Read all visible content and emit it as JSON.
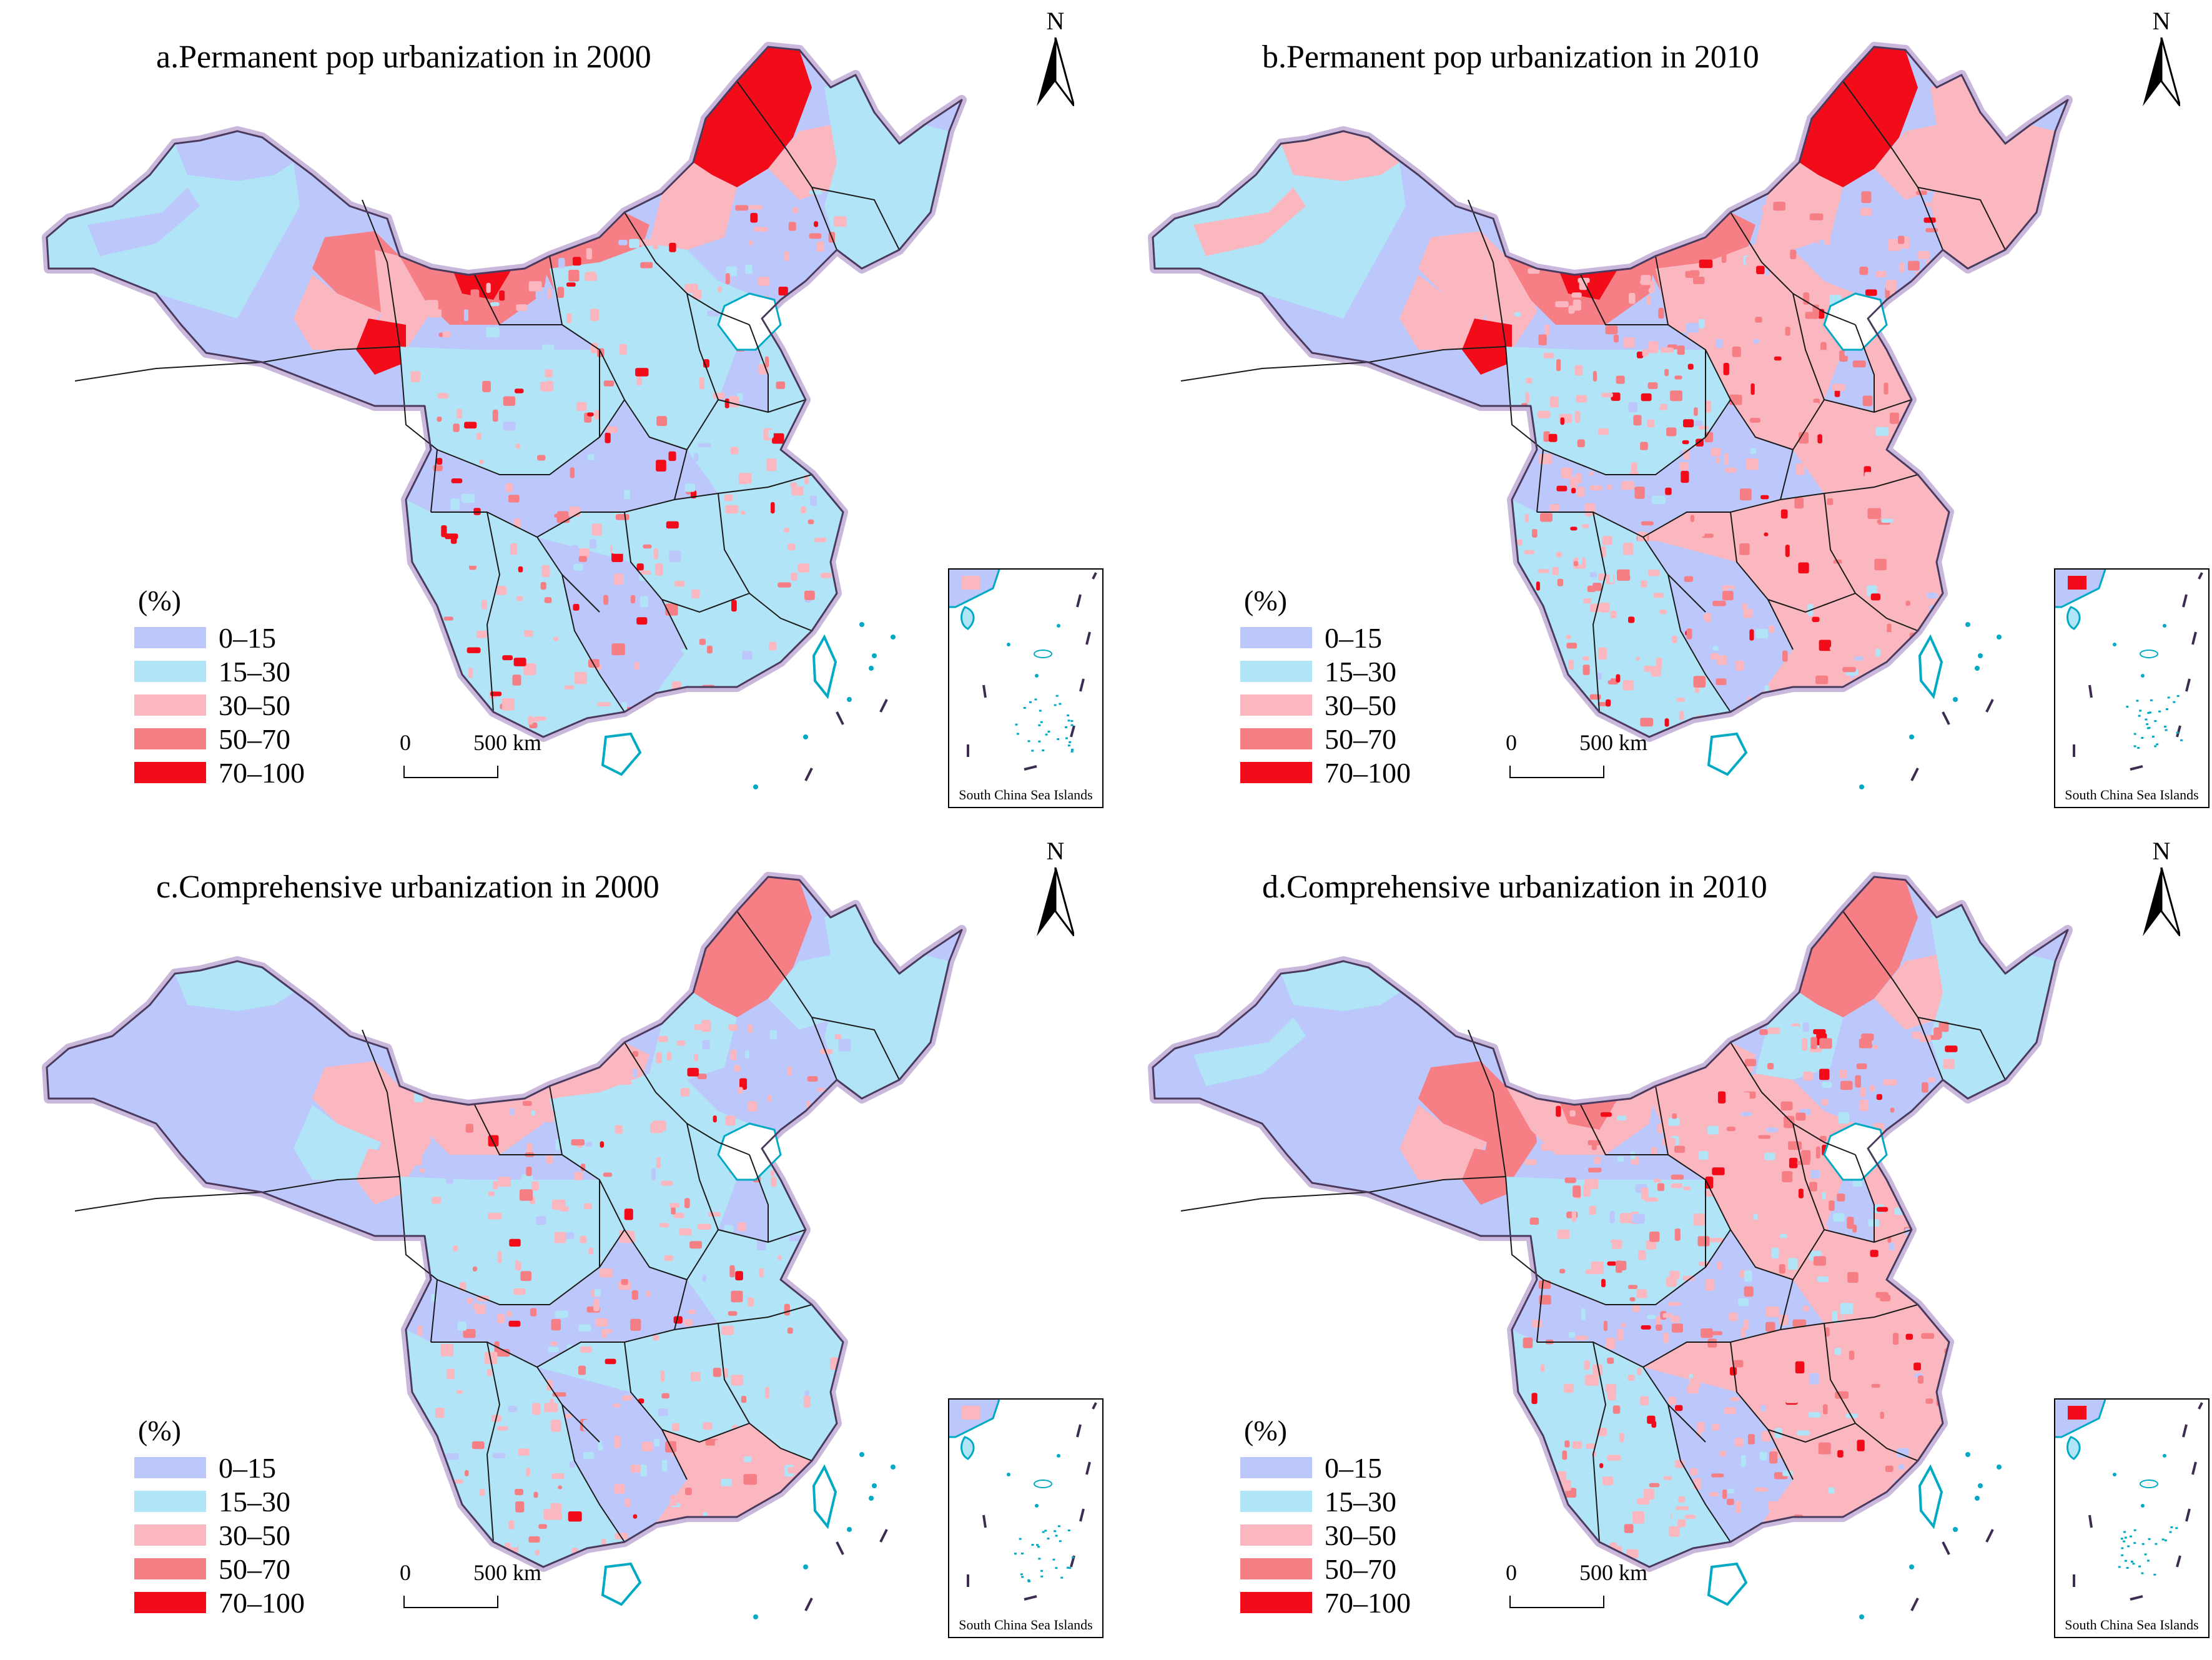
{
  "figure": {
    "legend_unit": "(%)",
    "scale_zero": "0",
    "scale_end": "500 km",
    "north_label": "N",
    "inset_label": "South China Sea Islands"
  },
  "classes": [
    {
      "label": "0–15",
      "color": "#bcc7fb"
    },
    {
      "label": "15–30",
      "color": "#b0e4f6"
    },
    {
      "label": "30–50",
      "color": "#fbb7bf"
    },
    {
      "label": "50–70",
      "color": "#f67f86"
    },
    {
      "label": "70–100",
      "color": "#f20c19"
    }
  ],
  "panels": [
    {
      "title": "a.Permanent pop urbanization in 2000"
    },
    {
      "title": "b.Permanent pop urbanization in 2010"
    },
    {
      "title": "c.Comprehensive urbanization in 2000"
    },
    {
      "title": "d.Comprehensive urbanization in 2010"
    }
  ]
}
